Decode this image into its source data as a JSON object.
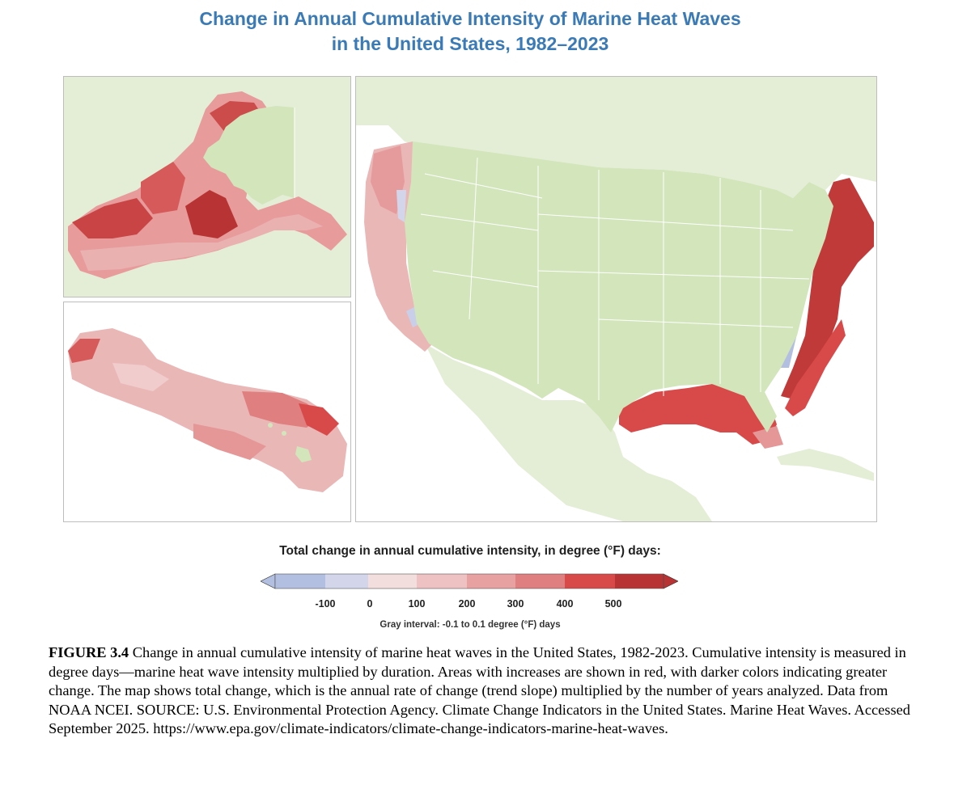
{
  "title_line1": "Change in Annual Cumulative Intensity of Marine Heat Waves",
  "title_line2": "in the United States, 1982–2023",
  "legend": {
    "title": "Total change in annual cumulative intensity, in degree (°F) days:",
    "ticks": [
      "-100",
      "0",
      "100",
      "200",
      "300",
      "400",
      "500"
    ],
    "colors": [
      "#b3bfe0",
      "#d3d6ea",
      "#f3dede",
      "#eec2c2",
      "#e8a1a1",
      "#e07f7f",
      "#d84a4a",
      "#b83434"
    ],
    "gray_note": "Gray interval: -0.1 to 0.1 degree (°F) days"
  },
  "map_colors": {
    "land": "#dde9ca",
    "land_main": "#d3e5bb",
    "ocean": "#ffffff",
    "border": "#ffffff"
  },
  "caption": {
    "label": "FIGURE 3.4",
    "text": "Change in annual cumulative intensity of marine heat waves in the United States, 1982-2023. Cumulative intensity is measured in degree days—marine heat wave intensity multiplied by duration. Areas with increases are shown in red, with darker colors indicating greater change. The map shows total change, which is the annual rate of change (trend slope) multiplied by the number of years analyzed. Data from NOAA NCEI. SOURCE: U.S. Environmental Protection Agency. Climate Change Indicators in the United States. Marine Heat Waves. Accessed September 2025. https://www.epa.gov/climate-indicators/climate-change-indicators-marine-heat-waves."
  }
}
